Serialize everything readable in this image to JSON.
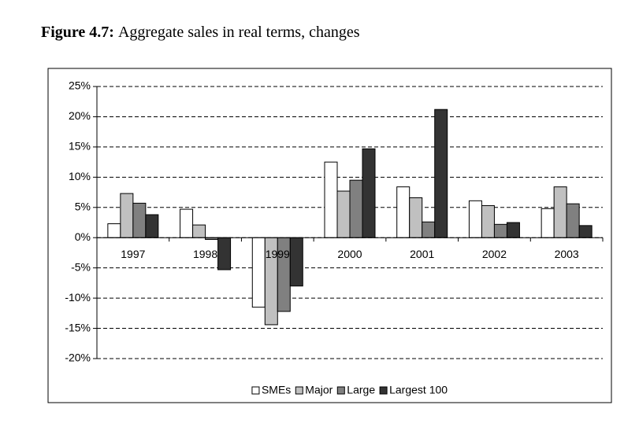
{
  "chart_data": {
    "type": "bar",
    "title_label": "Figure 4.7:",
    "title": "Aggregate sales in real terms, changes",
    "categories": [
      "1997",
      "1998",
      "1999",
      "2000",
      "2001",
      "2002",
      "2003"
    ],
    "series": [
      {
        "name": "SMEs",
        "color": "#ffffff",
        "values": [
          2.3,
          4.7,
          -11.5,
          12.5,
          8.4,
          6.1,
          4.8
        ]
      },
      {
        "name": "Major",
        "color": "#c0c0c0",
        "values": [
          7.3,
          2.1,
          -14.4,
          7.7,
          6.6,
          5.3,
          8.4
        ]
      },
      {
        "name": "Large",
        "color": "#808080",
        "values": [
          5.7,
          -0.3,
          -12.2,
          9.5,
          2.6,
          2.2,
          5.6
        ]
      },
      {
        "name": "Largest 100",
        "color": "#333333",
        "values": [
          3.8,
          -5.3,
          -8.0,
          14.7,
          21.2,
          2.5,
          2.0
        ]
      }
    ],
    "ylim": [
      -20,
      25
    ],
    "yticks": [
      {
        "value": -20,
        "label": "-20%"
      },
      {
        "value": -15,
        "label": "-15%"
      },
      {
        "value": -10,
        "label": "-10%"
      },
      {
        "value": -5,
        "label": "-5%"
      },
      {
        "value": 0,
        "label": "0%"
      },
      {
        "value": 5,
        "label": "5%"
      },
      {
        "value": 10,
        "label": "10%"
      },
      {
        "value": 15,
        "label": "15%"
      },
      {
        "value": 20,
        "label": "20%"
      },
      {
        "value": 25,
        "label": "25%"
      }
    ],
    "grid": true,
    "legend": "bottom"
  }
}
